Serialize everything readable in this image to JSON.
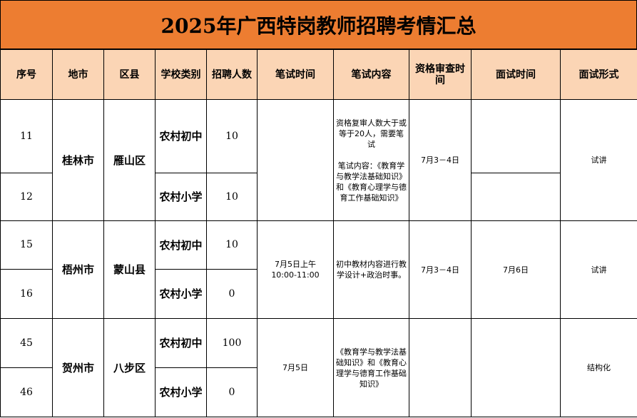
{
  "title": "2025年广西特岗教师招聘考情汇总",
  "headers": [
    "序号",
    "地市",
    "区县",
    "学校类别",
    "招聘人数",
    "笔试时间",
    "笔试内容",
    "资格审查时间",
    "面试时间",
    "面试形式"
  ],
  "groups": [
    {
      "city": "桂林市",
      "county": "雁山区",
      "written_time": "",
      "written_content": "资格复审人数大于或等于20人，需要笔试\n\n笔试内容：《教育学与教学法基础知识》和《教育心理学与德育工作基础知识》",
      "review_time": "7月3－4日",
      "interview_time": "",
      "interview_form": "试讲",
      "rows": [
        {
          "no": "11",
          "type": "农村初中",
          "count": "10"
        },
        {
          "no": "12",
          "type": "农村小学",
          "count": "10"
        }
      ]
    },
    {
      "city": "梧州市",
      "county": "蒙山县",
      "written_time": "7月5日上午\n10:00-11:00",
      "written_content": "初中教材内容进行教学设计+政治时事。",
      "review_time": "7月3－4日",
      "interview_time": "7月6日",
      "interview_form": "试讲",
      "rows": [
        {
          "no": "15",
          "type": "农村初中",
          "count": "10"
        },
        {
          "no": "16",
          "type": "农村小学",
          "count": "0"
        }
      ]
    },
    {
      "city": "贺州市",
      "county": "八步区",
      "written_time": "7月5日",
      "written_content": "《教育学与教学法基础知识》和《教育心理学与德育工作基础知识》",
      "review_time": "",
      "interview_time": "",
      "interview_form": "结构化",
      "rows": [
        {
          "no": "45",
          "type": "农村初中",
          "count": "100"
        },
        {
          "no": "46",
          "type": "农村小学",
          "count": "0"
        }
      ]
    }
  ],
  "colors": {
    "title_bg": "#ed7d31",
    "header_bg": "#fbd5b5"
  }
}
